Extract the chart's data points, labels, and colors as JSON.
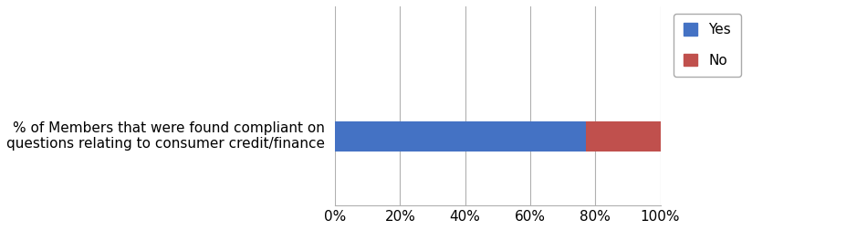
{
  "category": "% of Members that were found compliant on\nquestions relating to consumer credit/finance",
  "yes_value": 77,
  "no_value": 23,
  "yes_color": "#4472C4",
  "no_color": "#C0504D",
  "yes_label": "Yes",
  "no_label": "No",
  "xlim": [
    0,
    100
  ],
  "xticks": [
    0,
    20,
    40,
    60,
    80,
    100
  ],
  "xticklabels": [
    "0%",
    "20%",
    "40%",
    "60%",
    "80%",
    "100%"
  ],
  "background_color": "#ffffff",
  "grid_color": "#b0b0b0",
  "label_fontsize": 11,
  "tick_fontsize": 11,
  "legend_fontsize": 11,
  "bar_height": 0.35,
  "ylim": [
    -0.8,
    1.5
  ]
}
